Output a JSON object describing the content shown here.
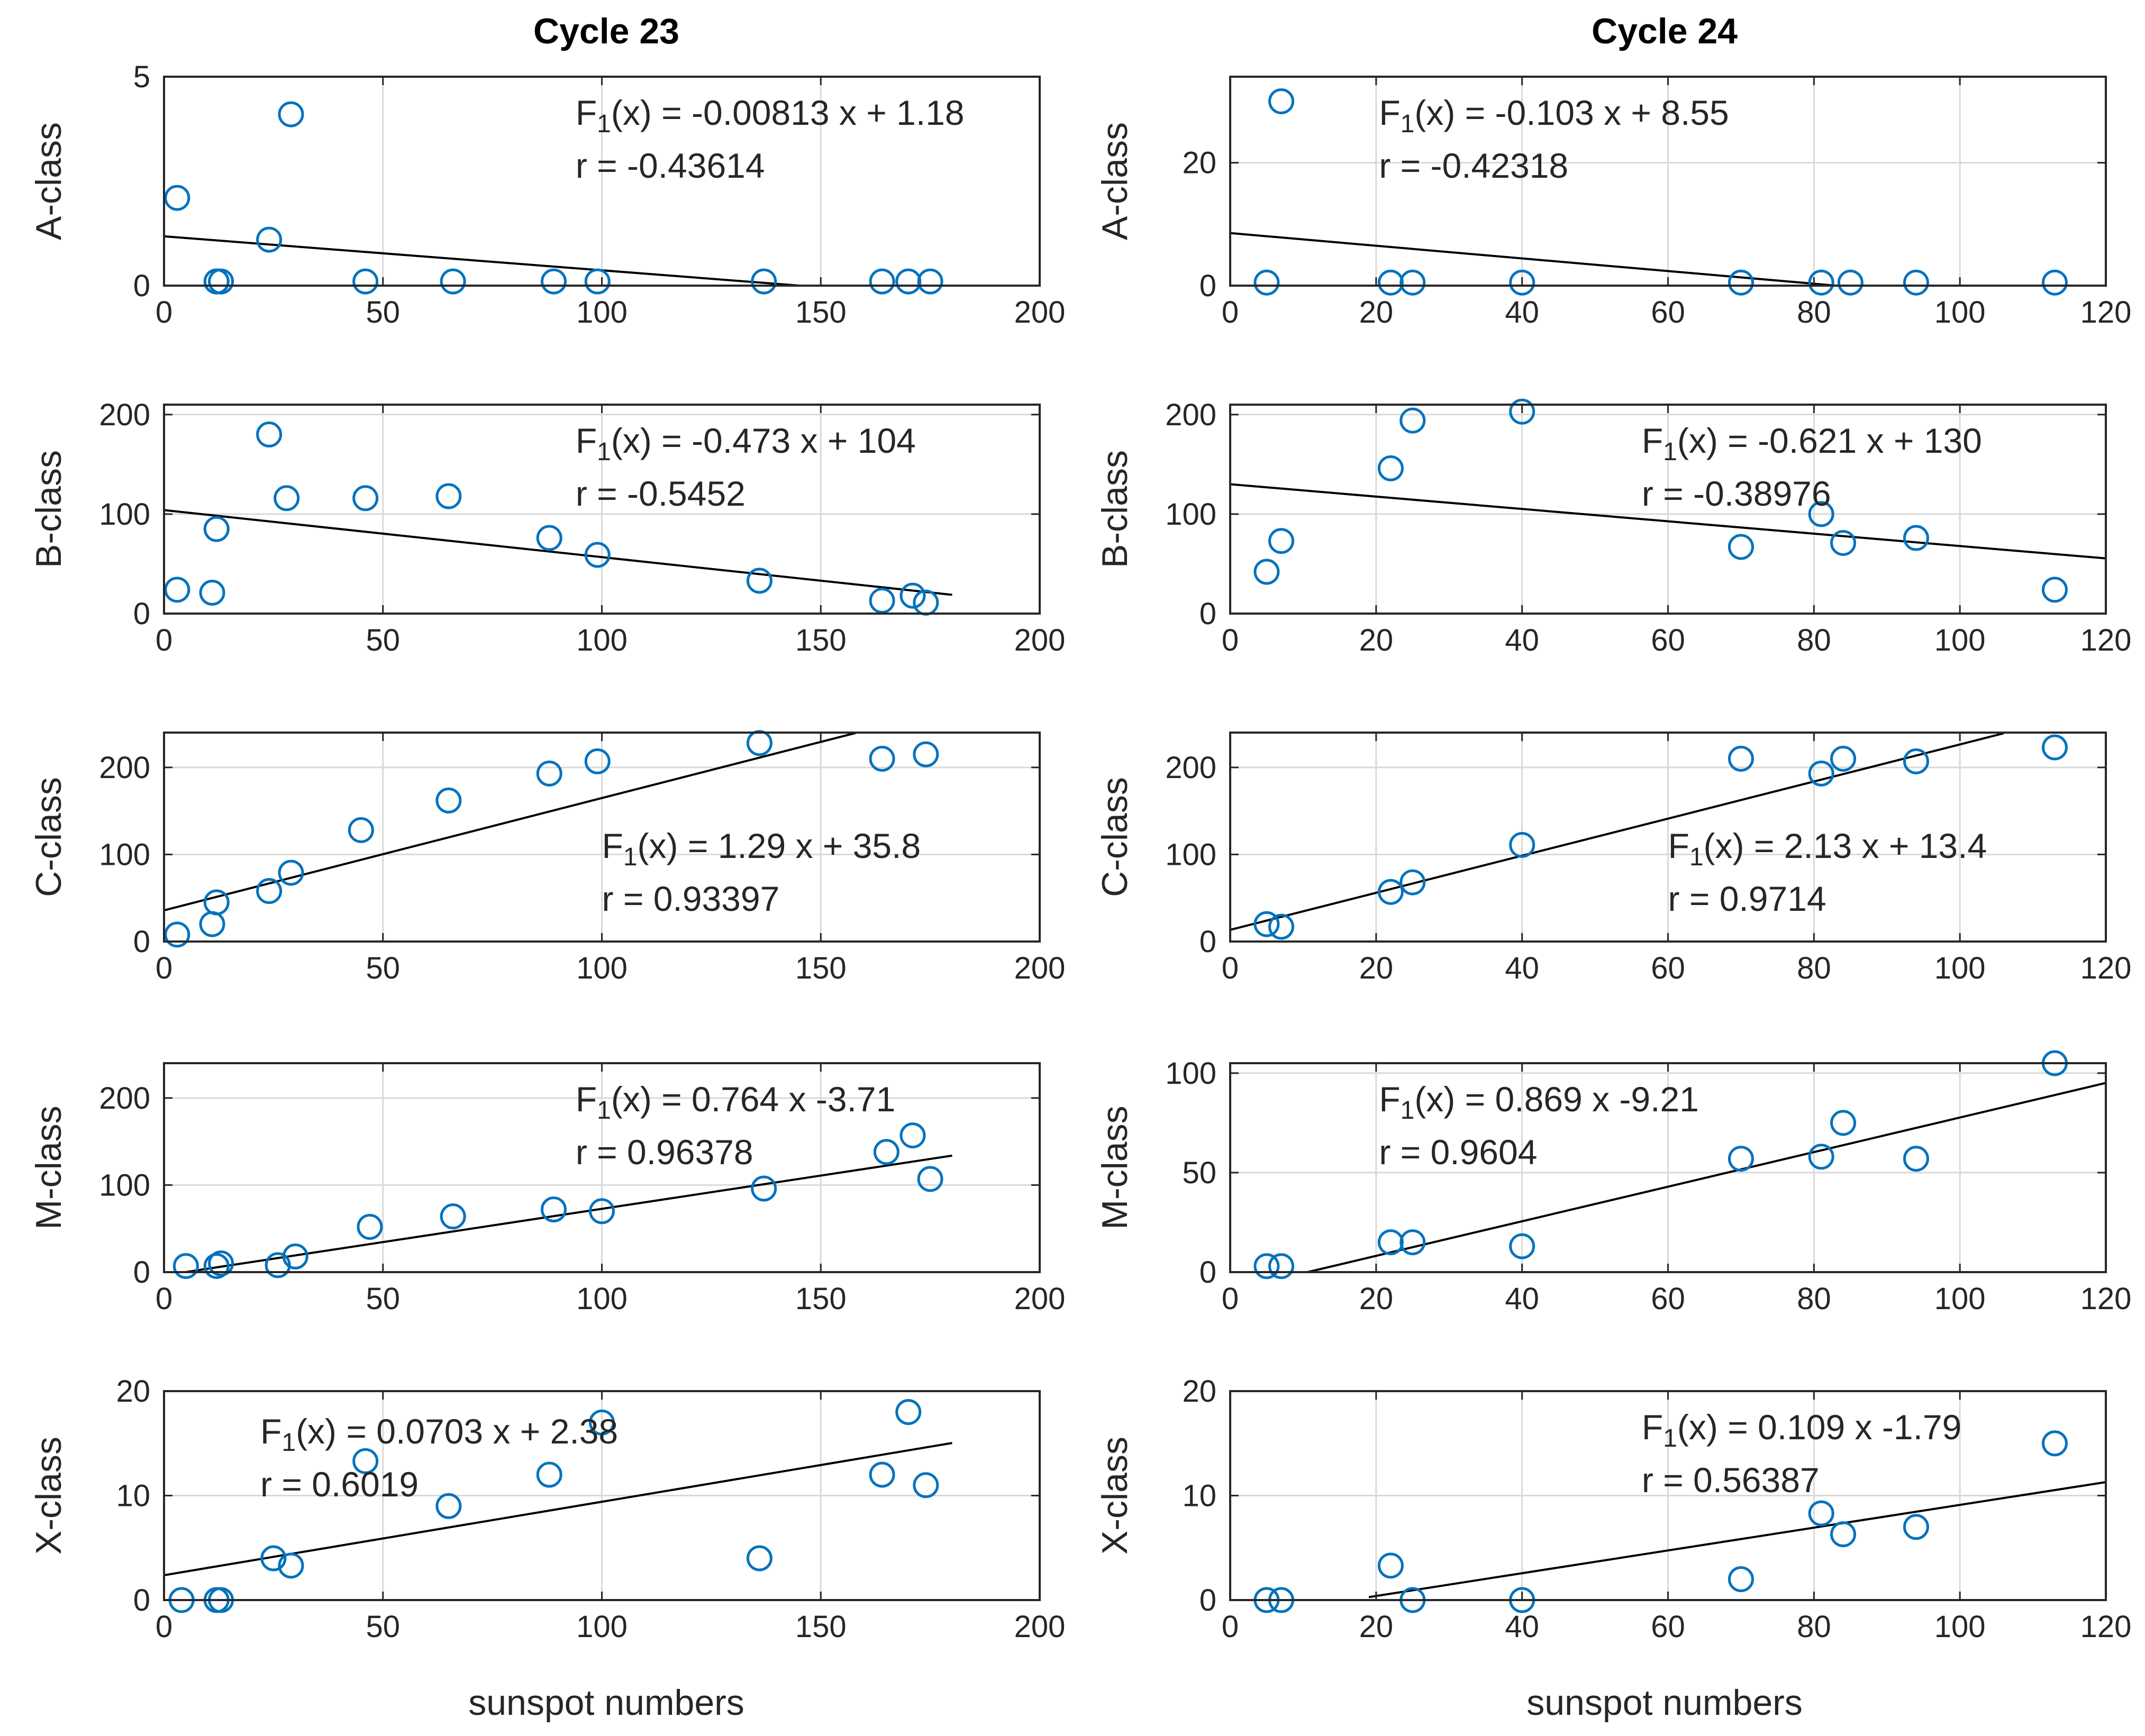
{
  "figure": {
    "column_titles": [
      "Cycle 23",
      "Cycle 24"
    ],
    "xlabel": "sunspot numbers",
    "colors": {
      "marker": "#0072BD",
      "fit_line": "#000000",
      "grid": "#d9d9d9",
      "axes": "#262626"
    }
  },
  "chart_data": [
    {
      "type": "scatter",
      "row": 0,
      "col": 0,
      "ylabel": "A-class",
      "xlim": [
        0,
        200
      ],
      "ylim": [
        0,
        5
      ],
      "xticks": [
        0,
        50,
        100,
        150,
        200
      ],
      "yticks": [
        0,
        5
      ],
      "grid": true,
      "fit": {
        "slope": -0.00813,
        "intercept": 1.18,
        "x_range": [
          0,
          145
        ]
      },
      "annotation": {
        "label_text": "(x) = -0.00813 x + 1.18",
        "r_text": "r = -0.43614",
        "pos": "top-right"
      },
      "points": {
        "x": [
          3,
          12,
          12,
          13,
          24,
          29,
          46,
          66,
          89,
          99,
          137,
          164,
          170,
          175
        ],
        "y": [
          2.1,
          0.1,
          0.1,
          0.1,
          1.1,
          4.1,
          0.1,
          0.1,
          0.1,
          0.1,
          0.1,
          0.1,
          0.1,
          0.1
        ]
      }
    },
    {
      "type": "scatter",
      "row": 0,
      "col": 1,
      "ylabel": "A-class",
      "xlim": [
        0,
        120
      ],
      "ylim": [
        0,
        34
      ],
      "xticks": [
        0,
        20,
        40,
        60,
        80,
        100,
        120
      ],
      "yticks": [
        0,
        20
      ],
      "grid": true,
      "fit": {
        "slope": -0.103,
        "intercept": 8.55,
        "x_range": [
          0,
          83
        ]
      },
      "annotation": {
        "label_text": "(x) = -0.103 x + 8.55",
        "r_text": "r = -0.42318",
        "pos": "top-center"
      },
      "points": {
        "x": [
          5,
          7,
          22,
          25,
          40,
          70,
          81,
          85,
          94,
          113
        ],
        "y": [
          0.5,
          30,
          0.5,
          0.5,
          0.5,
          0.5,
          0.5,
          0.5,
          0.5,
          0.5
        ]
      }
    },
    {
      "type": "scatter",
      "row": 1,
      "col": 0,
      "ylabel": "B-class",
      "xlim": [
        0,
        200
      ],
      "ylim": [
        0,
        210
      ],
      "xticks": [
        0,
        50,
        100,
        150,
        200
      ],
      "yticks": [
        0,
        100,
        200
      ],
      "grid": true,
      "fit": {
        "slope": -0.473,
        "intercept": 104,
        "x_range": [
          0,
          180
        ]
      },
      "annotation": {
        "label_text": "(x) = -0.473 x + 104",
        "r_text": "r = -0.5452",
        "pos": "top-right"
      },
      "points": {
        "x": [
          3,
          11,
          12,
          24,
          28,
          46,
          65,
          88,
          99,
          136,
          164,
          171,
          174
        ],
        "y": [
          24,
          21,
          85,
          180,
          116,
          116,
          118,
          76,
          59,
          33,
          13,
          18,
          11
        ]
      }
    },
    {
      "type": "scatter",
      "row": 1,
      "col": 1,
      "ylabel": "B-class",
      "xlim": [
        0,
        120
      ],
      "ylim": [
        0,
        210
      ],
      "xticks": [
        0,
        20,
        40,
        60,
        80,
        100,
        120
      ],
      "yticks": [
        0,
        100,
        200
      ],
      "grid": true,
      "fit": {
        "slope": -0.621,
        "intercept": 130,
        "x_range": [
          0,
          120
        ]
      },
      "annotation": {
        "label_text": "(x) = -0.621 x + 130",
        "r_text": "r = -0.38976",
        "pos": "top-right"
      },
      "points": {
        "x": [
          5,
          7,
          22,
          25,
          40,
          70,
          81,
          84,
          94,
          113
        ],
        "y": [
          42,
          73,
          146,
          194,
          203,
          67,
          100,
          71,
          76,
          24
        ]
      }
    },
    {
      "type": "scatter",
      "row": 2,
      "col": 0,
      "ylabel": "C-class",
      "xlim": [
        0,
        200
      ],
      "ylim": [
        0,
        240
      ],
      "xticks": [
        0,
        50,
        100,
        150,
        200
      ],
      "yticks": [
        0,
        100,
        200
      ],
      "grid": true,
      "fit": {
        "slope": 1.29,
        "intercept": 35.8,
        "x_range": [
          0,
          158
        ]
      },
      "annotation": {
        "label_text": "(x) = 1.29 x + 35.8",
        "r_text": "r = 0.93397",
        "pos": "middle-right"
      },
      "points": {
        "x": [
          3,
          11,
          12,
          24,
          29,
          45,
          65,
          88,
          99,
          136,
          164,
          174
        ],
        "y": [
          8,
          20,
          45,
          58,
          79,
          128,
          162,
          193,
          207,
          228,
          210,
          215
        ]
      }
    },
    {
      "type": "scatter",
      "row": 2,
      "col": 1,
      "ylabel": "C-class",
      "xlim": [
        0,
        120
      ],
      "ylim": [
        0,
        240
      ],
      "xticks": [
        0,
        20,
        40,
        60,
        80,
        100,
        120
      ],
      "yticks": [
        0,
        100,
        200
      ],
      "grid": true,
      "fit": {
        "slope": 2.13,
        "intercept": 13.4,
        "x_range": [
          0,
          106
        ]
      },
      "annotation": {
        "label_text": "(x) = 2.13 x + 13.4",
        "r_text": "r = 0.9714",
        "pos": "middle-right"
      },
      "points": {
        "x": [
          5,
          7,
          22,
          25,
          40,
          70,
          81,
          84,
          94,
          113
        ],
        "y": [
          20,
          17,
          57,
          68,
          111,
          210,
          193,
          210,
          207,
          223
        ]
      }
    },
    {
      "type": "scatter",
      "row": 3,
      "col": 0,
      "ylabel": "M-class",
      "xlim": [
        0,
        200
      ],
      "ylim": [
        0,
        240
      ],
      "xticks": [
        0,
        50,
        100,
        150,
        200
      ],
      "yticks": [
        0,
        100,
        200
      ],
      "grid": true,
      "fit": {
        "slope": 0.764,
        "intercept": -3.71,
        "x_range": [
          5,
          180
        ]
      },
      "annotation": {
        "label_text": "(x) = 0.764 x  -3.71",
        "r_text": "r = 0.96378",
        "pos": "top-right"
      },
      "points": {
        "x": [
          5,
          12,
          13,
          26,
          30,
          47,
          66,
          89,
          100,
          137,
          165,
          171,
          175
        ],
        "y": [
          7,
          7,
          10,
          8,
          18,
          52,
          64,
          72,
          70,
          96,
          138,
          157,
          107
        ]
      }
    },
    {
      "type": "scatter",
      "row": 3,
      "col": 1,
      "ylabel": "M-class",
      "xlim": [
        0,
        120
      ],
      "ylim": [
        0,
        105
      ],
      "xticks": [
        0,
        20,
        40,
        60,
        80,
        100,
        120
      ],
      "yticks": [
        0,
        50,
        100
      ],
      "grid": true,
      "fit": {
        "slope": 0.869,
        "intercept": -9.21,
        "x_range": [
          10.6,
          120
        ]
      },
      "annotation": {
        "label_text": "(x) = 0.869 x -9.21",
        "r_text": "r = 0.9604",
        "pos": "top-center"
      },
      "points": {
        "x": [
          5,
          7,
          22,
          25,
          40,
          70,
          81,
          84,
          94,
          113
        ],
        "y": [
          3,
          3,
          15,
          15,
          13,
          57,
          58,
          75,
          57,
          105
        ]
      }
    },
    {
      "type": "scatter",
      "row": 4,
      "col": 0,
      "ylabel": "X-class",
      "xlim": [
        0,
        200
      ],
      "ylim": [
        0,
        20
      ],
      "xticks": [
        0,
        50,
        100,
        150,
        200
      ],
      "yticks": [
        0,
        10,
        20
      ],
      "grid": true,
      "fit": {
        "slope": 0.0703,
        "intercept": 2.38,
        "x_range": [
          0,
          180
        ]
      },
      "annotation": {
        "label_text": "(x) = 0.0703 x + 2.38",
        "r_text": "r = 0.6019",
        "pos": "top-left"
      },
      "points": {
        "x": [
          4,
          12,
          13,
          25,
          29,
          46,
          65,
          88,
          100,
          136,
          164,
          170,
          174
        ],
        "y": [
          0,
          0,
          0,
          4,
          3.3,
          13.3,
          9,
          12,
          17,
          4,
          12,
          18,
          11
        ]
      }
    },
    {
      "type": "scatter",
      "row": 4,
      "col": 1,
      "ylabel": "X-class",
      "xlim": [
        0,
        120
      ],
      "ylim": [
        0,
        20
      ],
      "xticks": [
        0,
        20,
        40,
        60,
        80,
        100,
        120
      ],
      "yticks": [
        0,
        10,
        20
      ],
      "grid": true,
      "fit": {
        "slope": 0.109,
        "intercept": -1.79,
        "x_range": [
          19,
          120
        ]
      },
      "annotation": {
        "label_text": "(x) = 0.109 x  -1.79",
        "r_text": "r = 0.56387",
        "pos": "top-right"
      },
      "points": {
        "x": [
          5,
          7,
          22,
          25,
          40,
          70,
          81,
          84,
          94,
          113
        ],
        "y": [
          0,
          0,
          3.3,
          0,
          0,
          2,
          8.3,
          6.3,
          7,
          15
        ]
      }
    }
  ]
}
